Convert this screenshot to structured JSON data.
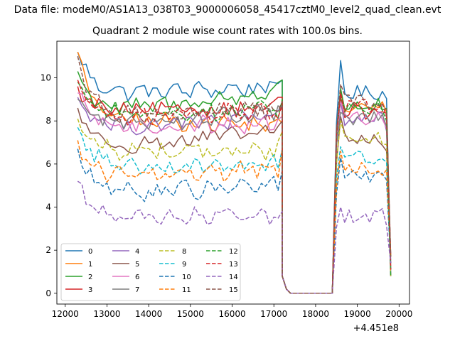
{
  "suptitle": "Data file: modeM0/AS1A13_038T03_9000006058_45417cztM0_level2_quad_clean.evt",
  "chart_data": {
    "type": "line",
    "title": "Quadrant 2 module wise count rates with 100.0s bins.",
    "xlabel": "",
    "ylabel": "",
    "x_offset_label": "+4.451e8",
    "xlim": [
      11800,
      20250
    ],
    "ylim": [
      -0.5,
      11.7
    ],
    "x_ticks": [
      12000,
      13000,
      14000,
      15000,
      16000,
      17000,
      18000,
      19000,
      20000
    ],
    "x_tick_labels": [
      "12000",
      "13000",
      "14000",
      "15000",
      "16000",
      "17000",
      "18000",
      "19000",
      "20000"
    ],
    "y_ticks": [
      0,
      2,
      4,
      6,
      8,
      10
    ],
    "y_tick_labels": [
      "0",
      "2",
      "4",
      "6",
      "8",
      "10"
    ],
    "grid": false,
    "legend": {
      "placement": "lower-left",
      "columns": 4
    },
    "segment1": {
      "x_start": 12300,
      "x_step": 100,
      "n": 50
    },
    "drop_points": {
      "x": [
        17200,
        17300,
        17400
      ],
      "values": [
        0.8,
        0.2,
        0.0
      ]
    },
    "gap": {
      "x_start": 17400,
      "x_end": 18400,
      "value": 0.0
    },
    "segment2": {
      "x_start": 18400,
      "x_step": 100,
      "n": 15
    },
    "series": [
      {
        "name": "0",
        "color": "#1f77b4",
        "dashed": false,
        "seg1_start": 11.2,
        "seg1_base": 9.3,
        "seg1_end": 9.6,
        "seg1_peak": 9.9,
        "seg2_peak": 10.8,
        "seg2_level": 9.3
      },
      {
        "name": "1",
        "color": "#ff7f0e",
        "dashed": false,
        "seg1_start": 11.2,
        "seg1_base": 8.0,
        "seg1_end": 7.8,
        "seg1_peak": 7.9,
        "seg2_peak": 9.4,
        "seg2_level": 8.6
      },
      {
        "name": "2",
        "color": "#2ca02c",
        "dashed": false,
        "seg1_start": 10.3,
        "seg1_base": 8.5,
        "seg1_end": 9.4,
        "seg1_peak": 9.9,
        "seg2_peak": 9.5,
        "seg2_level": 8.7
      },
      {
        "name": "3",
        "color": "#d62728",
        "dashed": false,
        "seg1_start": 9.6,
        "seg1_base": 8.4,
        "seg1_end": 8.7,
        "seg1_peak": 9.1,
        "seg2_peak": 9.1,
        "seg2_level": 8.4
      },
      {
        "name": "4",
        "color": "#9467bd",
        "dashed": false,
        "seg1_start": 9.1,
        "seg1_base": 7.7,
        "seg1_end": 8.2,
        "seg1_peak": 8.7,
        "seg2_peak": 8.9,
        "seg2_level": 8.1
      },
      {
        "name": "5",
        "color": "#8c564b",
        "dashed": false,
        "seg1_start": 8.6,
        "seg1_base": 6.8,
        "seg1_end": 7.6,
        "seg1_peak": 8.0,
        "seg2_peak": 8.2,
        "seg2_level": 7.1
      },
      {
        "name": "6",
        "color": "#e377c2",
        "dashed": false,
        "seg1_start": 9.3,
        "seg1_base": 7.7,
        "seg1_end": 7.9,
        "seg1_peak": 8.2,
        "seg2_peak": 8.9,
        "seg2_level": 8.1
      },
      {
        "name": "7",
        "color": "#7f7f7f",
        "dashed": false,
        "seg1_start": 9.0,
        "seg1_base": 7.9,
        "seg1_end": 8.4,
        "seg1_peak": 8.5,
        "seg2_peak": 8.4,
        "seg2_level": 8.1
      },
      {
        "name": "8",
        "color": "#bcbd22",
        "dashed": true,
        "seg1_start": 8.1,
        "seg1_base": 6.6,
        "seg1_end": 6.6,
        "seg1_peak": 7.5,
        "seg2_peak": 8.0,
        "seg2_level": 7.2
      },
      {
        "name": "9",
        "color": "#17becf",
        "dashed": true,
        "seg1_start": 7.7,
        "seg1_base": 5.9,
        "seg1_end": 6.0,
        "seg1_peak": 6.7,
        "seg2_peak": 6.8,
        "seg2_level": 6.3
      },
      {
        "name": "10",
        "color": "#1f77b4",
        "dashed": true,
        "seg1_start": 6.7,
        "seg1_base": 4.6,
        "seg1_end": 5.1,
        "seg1_peak": 5.7,
        "seg2_peak": 6.3,
        "seg2_level": 5.4
      },
      {
        "name": "11",
        "color": "#ff7f0e",
        "dashed": true,
        "seg1_start": 7.1,
        "seg1_base": 5.4,
        "seg1_end": 5.8,
        "seg1_peak": 6.7,
        "seg2_peak": 6.6,
        "seg2_level": 5.8
      },
      {
        "name": "12",
        "color": "#2ca02c",
        "dashed": true,
        "seg1_start": 9.8,
        "seg1_base": 8.3,
        "seg1_end": 8.6,
        "seg1_peak": 9.0,
        "seg2_peak": 9.2,
        "seg2_level": 8.6
      },
      {
        "name": "13",
        "color": "#d62728",
        "dashed": true,
        "seg1_start": 9.9,
        "seg1_base": 8.1,
        "seg1_end": 8.5,
        "seg1_peak": 8.8,
        "seg2_peak": 9.3,
        "seg2_level": 8.7
      },
      {
        "name": "14",
        "color": "#9467bd",
        "dashed": true,
        "seg1_start": 5.2,
        "seg1_base": 3.4,
        "seg1_end": 3.7,
        "seg1_peak": 3.8,
        "seg2_peak": 4.0,
        "seg2_level": 3.6
      },
      {
        "name": "15",
        "color": "#8c564b",
        "dashed": true,
        "seg1_start": 11.0,
        "seg1_base": 8.2,
        "seg1_end": 8.6,
        "seg1_peak": 8.9,
        "seg2_peak": 9.7,
        "seg2_level": 8.9
      }
    ]
  }
}
